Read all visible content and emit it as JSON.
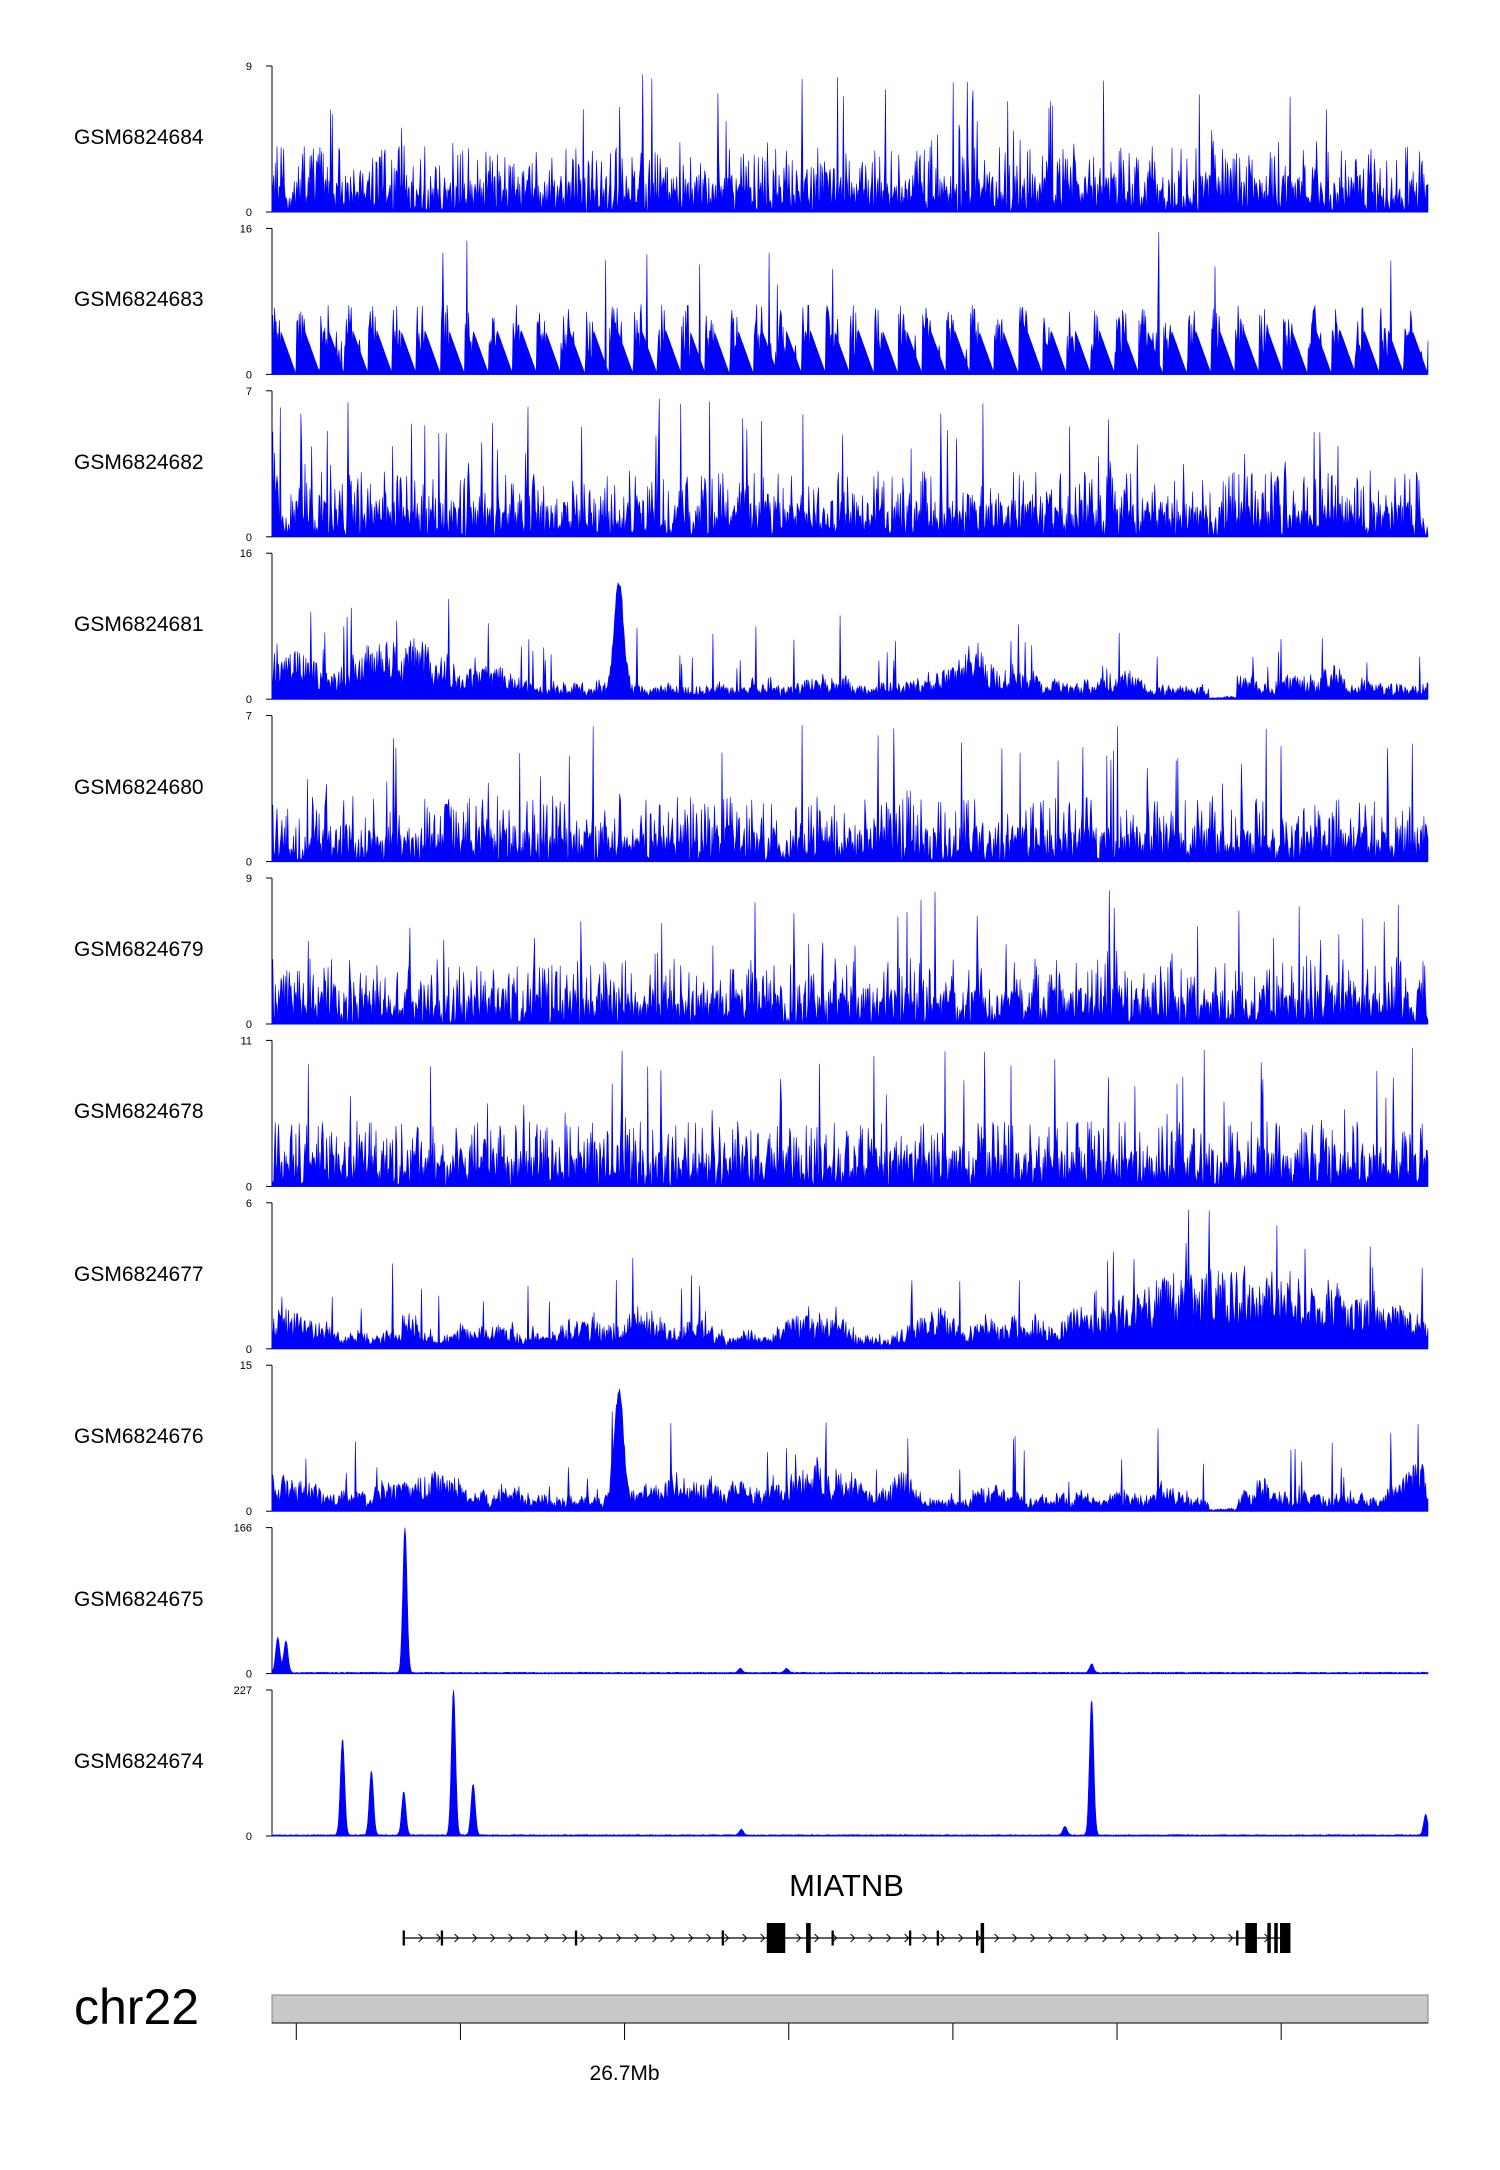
{
  "chart_data": {
    "type": "area",
    "color": "#0000ff",
    "tracks": [
      {
        "name": "GSM6824684",
        "ymax": 9,
        "style": "sparse"
      },
      {
        "name": "GSM6824683",
        "ymax": 16,
        "style": "gappy"
      },
      {
        "name": "GSM6824682",
        "ymax": 7,
        "style": "sparse"
      },
      {
        "name": "GSM6824681",
        "ymax": 16,
        "style": "dense"
      },
      {
        "name": "GSM6824680",
        "ymax": 7,
        "style": "sparse"
      },
      {
        "name": "GSM6824679",
        "ymax": 9,
        "style": "sparse"
      },
      {
        "name": "GSM6824678",
        "ymax": 11,
        "style": "sparse"
      },
      {
        "name": "GSM6824677",
        "ymax": 6,
        "style": "dense"
      },
      {
        "name": "GSM6824676",
        "ymax": 15,
        "style": "dense"
      },
      {
        "name": "GSM6824675",
        "ymax": 166,
        "style": "peaks",
        "peaks": [
          {
            "pos": 0.005,
            "height": 0.24
          },
          {
            "pos": 0.012,
            "height": 0.22
          },
          {
            "pos": 0.115,
            "height": 1.0
          },
          {
            "pos": 0.405,
            "height": 0.03
          },
          {
            "pos": 0.445,
            "height": 0.03
          },
          {
            "pos": 0.709,
            "height": 0.06
          }
        ]
      },
      {
        "name": "GSM6824674",
        "ymax": 227,
        "style": "peaks",
        "peaks": [
          {
            "pos": 0.061,
            "height": 0.66
          },
          {
            "pos": 0.086,
            "height": 0.44
          },
          {
            "pos": 0.114,
            "height": 0.3
          },
          {
            "pos": 0.157,
            "height": 1.0
          },
          {
            "pos": 0.174,
            "height": 0.35
          },
          {
            "pos": 0.406,
            "height": 0.04
          },
          {
            "pos": 0.686,
            "height": 0.06
          },
          {
            "pos": 0.709,
            "height": 0.93
          },
          {
            "pos": 0.998,
            "height": 0.14
          }
        ]
      }
    ],
    "gene": {
      "name": "MIATNB",
      "start": 0.113,
      "end": 0.881,
      "exons": [
        {
          "pos": 0.113,
          "w": 0.002,
          "h": 0.5
        },
        {
          "pos": 0.146,
          "w": 0.002,
          "h": 0.5
        },
        {
          "pos": 0.262,
          "w": 0.002,
          "h": 0.5
        },
        {
          "pos": 0.389,
          "w": 0.002,
          "h": 0.5
        },
        {
          "pos": 0.428,
          "w": 0.016,
          "h": 1.0
        },
        {
          "pos": 0.462,
          "w": 0.004,
          "h": 1.0
        },
        {
          "pos": 0.484,
          "w": 0.002,
          "h": 0.5
        },
        {
          "pos": 0.551,
          "w": 0.002,
          "h": 0.5
        },
        {
          "pos": 0.575,
          "w": 0.002,
          "h": 0.5
        },
        {
          "pos": 0.609,
          "w": 0.002,
          "h": 0.5
        },
        {
          "pos": 0.613,
          "w": 0.003,
          "h": 1.0
        },
        {
          "pos": 0.834,
          "w": 0.002,
          "h": 0.5
        },
        {
          "pos": 0.842,
          "w": 0.01,
          "h": 1.0
        },
        {
          "pos": 0.861,
          "w": 0.003,
          "h": 1.0
        },
        {
          "pos": 0.867,
          "w": 0.003,
          "h": 1.0
        },
        {
          "pos": 0.872,
          "w": 0.009,
          "h": 1.0
        }
      ]
    },
    "chromosome": "chr22",
    "axis": {
      "ticks": [
        0.021,
        0.163,
        0.305,
        0.447,
        0.589,
        0.731,
        0.873
      ],
      "labeled_tick": {
        "pos": 0.305,
        "label": "26.7Mb"
      }
    }
  }
}
